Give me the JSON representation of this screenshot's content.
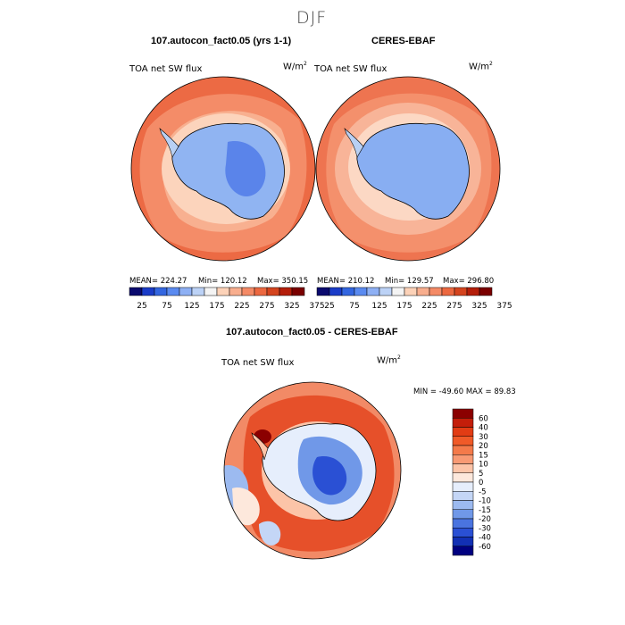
{
  "figure": {
    "title": "DJF"
  },
  "panels": [
    {
      "title": "107.autocon_fact0.05 (yrs 1-1)",
      "left_label": "TOA net SW flux",
      "units": "W/m",
      "units_sup": "2",
      "stats": {
        "mean": "MEAN= 224.27",
        "min": "Min= 120.12",
        "max": "Max= 350.15"
      }
    },
    {
      "title": "CERES-EBAF",
      "left_label": "TOA net SW flux",
      "units": "W/m",
      "units_sup": "2",
      "stats": {
        "mean": "MEAN= 210.12",
        "min": "Min= 129.57",
        "max": "Max= 296.80"
      }
    }
  ],
  "top_colorbar": {
    "colors": [
      "#0a0a6e",
      "#1a3cc8",
      "#3366e0",
      "#5a8af0",
      "#8eb0f4",
      "#bcd2f6",
      "#f4f4f4",
      "#fcd2b8",
      "#f8ae8e",
      "#f48a66",
      "#ec6840",
      "#d4441e",
      "#b41e0a",
      "#7a0000"
    ],
    "labels": [
      "25",
      "75",
      "125",
      "175",
      "225",
      "275",
      "325",
      "375"
    ]
  },
  "diff_panel": {
    "title": "107.autocon_fact0.05 - CERES-EBAF",
    "left_label": "TOA net SW flux",
    "units": "W/m",
    "units_sup": "2",
    "minmax": "MIN = -49.60 MAX =  89.83",
    "colorbar": {
      "colors": [
        "#8b0000",
        "#c41e0a",
        "#e23c14",
        "#f05a28",
        "#f47a4a",
        "#f89a74",
        "#fcc4a8",
        "#fde8dc",
        "#e6eefc",
        "#c4d6f6",
        "#9cbaf0",
        "#7098e8",
        "#4a74e0",
        "#2a50d4",
        "#1230b4",
        "#000080"
      ],
      "labels": [
        "60",
        "40",
        "30",
        "20",
        "15",
        "10",
        "5",
        "0",
        "-5",
        "-10",
        "-15",
        "-20",
        "-30",
        "-40",
        "-60"
      ]
    }
  }
}
